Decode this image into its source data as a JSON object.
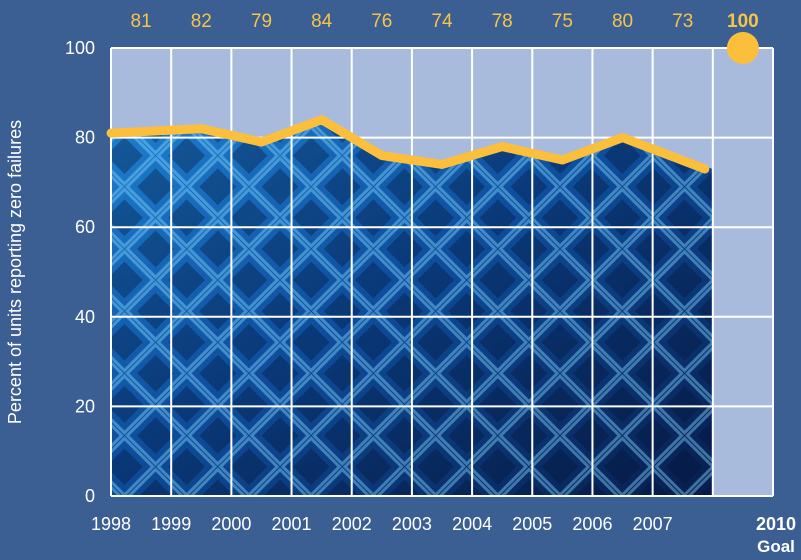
{
  "chart_data": {
    "type": "line",
    "ylabel": "Percent of units reporting zero failures",
    "ylim": [
      0,
      100
    ],
    "yticks": [
      0,
      20,
      40,
      60,
      80,
      100
    ],
    "categories": [
      "1998",
      "1999",
      "2000",
      "2001",
      "2002",
      "2003",
      "2004",
      "2005",
      "2006",
      "2007"
    ],
    "values": [
      81,
      82,
      79,
      84,
      76,
      74,
      78,
      75,
      80,
      73
    ],
    "goal": {
      "year": "2010",
      "label": "Goal",
      "value": 100
    },
    "grid": true,
    "colors": {
      "background": "#3b5e93",
      "plot_upper": "#a9bbdc",
      "grid": "#ffffff",
      "line": "#fbbf3c",
      "top_labels": "#f7c44a",
      "axis_text": "#ffffff",
      "photo_dark": "#071d4d",
      "photo_light": "#1e7fd0"
    }
  }
}
